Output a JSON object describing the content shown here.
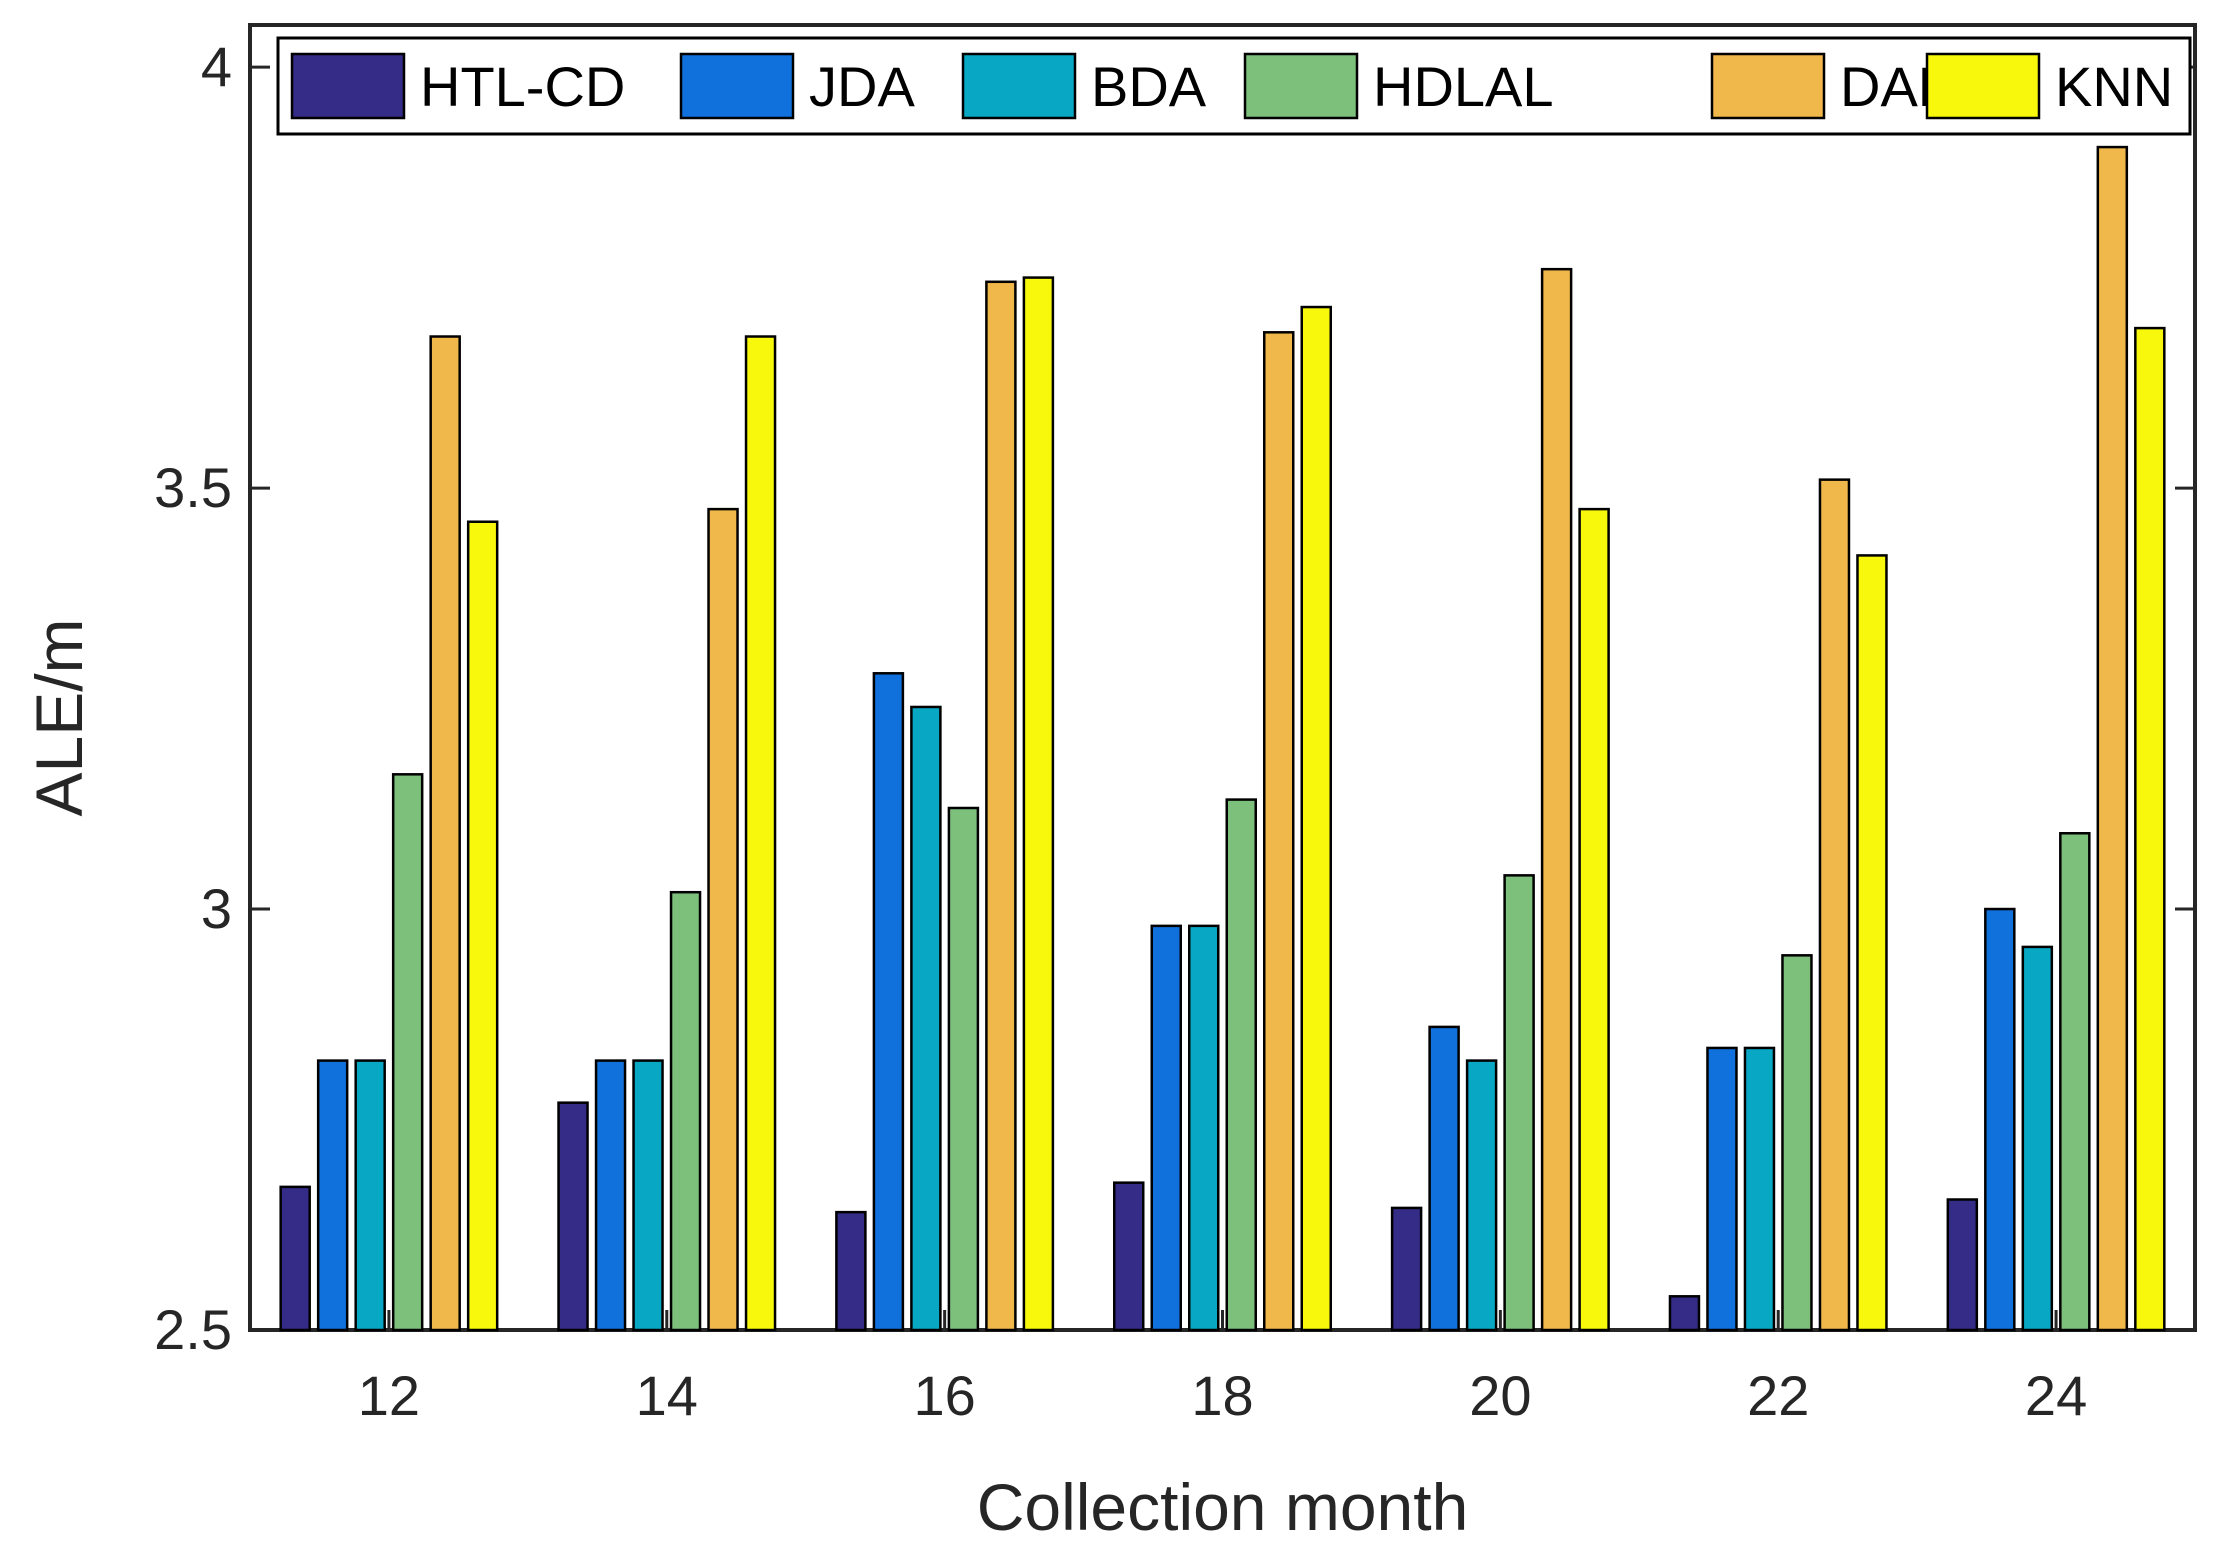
{
  "chart_data": {
    "type": "bar",
    "title": "",
    "xlabel": "Collection month",
    "ylabel": "ALE/m",
    "categories": [
      "12",
      "14",
      "16",
      "18",
      "20",
      "22",
      "24"
    ],
    "ylim": [
      2.5,
      4.05
    ],
    "yticks": [
      "2.5",
      "3",
      "3.5",
      "4"
    ],
    "ytick_values": [
      2.5,
      3.0,
      3.5,
      4.0
    ],
    "grid": false,
    "legend_position": "top",
    "series": [
      {
        "name": "HTL-CD",
        "color": "#342c86",
        "values": [
          2.67,
          2.77,
          2.64,
          2.675,
          2.645,
          2.54,
          2.655
        ]
      },
      {
        "name": "JDA",
        "color": "#1070dc",
        "values": [
          2.82,
          2.82,
          3.28,
          2.98,
          2.86,
          2.835,
          3.0
        ]
      },
      {
        "name": "BDA",
        "color": "#08a8c4",
        "values": [
          2.82,
          2.82,
          3.24,
          2.98,
          2.82,
          2.835,
          2.955
        ]
      },
      {
        "name": "HDLAL",
        "color": "#7cc07c",
        "values": [
          3.16,
          3.02,
          3.12,
          3.13,
          3.04,
          2.945,
          3.09
        ]
      },
      {
        "name": "DAMA",
        "color": "#f0b84a",
        "values": [
          3.68,
          3.475,
          3.745,
          3.685,
          3.76,
          3.51,
          3.905
        ]
      },
      {
        "name": "KNN",
        "color": "#f8f80c",
        "values": [
          3.46,
          3.68,
          3.75,
          3.715,
          3.475,
          3.42,
          3.69
        ]
      }
    ]
  }
}
